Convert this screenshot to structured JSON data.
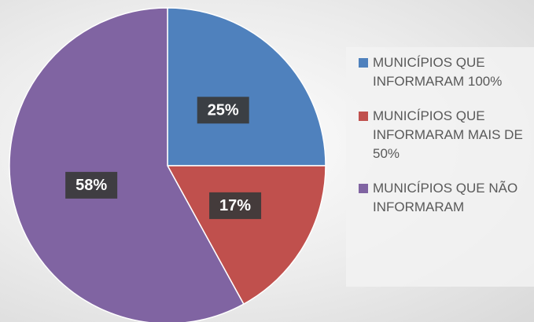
{
  "chart_data": {
    "type": "pie",
    "categories": [
      "MUNICÍPIOS QUE INFORMARAM 100%",
      "MUNICÍPIOS QUE INFORMARAM MAIS DE 50%",
      "MUNICÍPIOS QUE NÃO INFORMARAM"
    ],
    "values": [
      25,
      17,
      58
    ],
    "value_labels": [
      "25%",
      "17%",
      "58%"
    ],
    "colors": [
      "#4f81bd",
      "#c0504d",
      "#8064a2"
    ],
    "legend": "right"
  }
}
